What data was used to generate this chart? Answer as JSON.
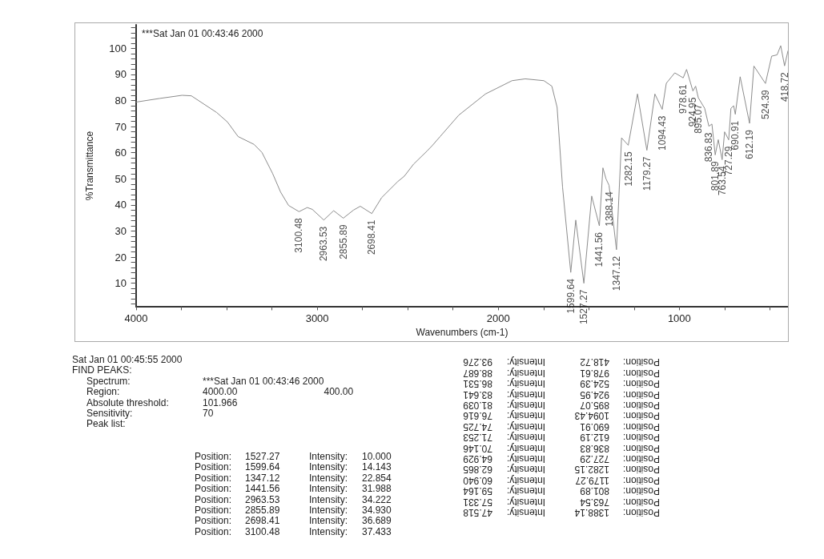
{
  "chart_data": {
    "type": "line",
    "title": "***Sat Jan 01 00:43:46 2000",
    "xlabel": "Wavenumbers (cm-1)",
    "ylabel": "%Transmittance",
    "xlim": [
      4000,
      400
    ],
    "ylim": [
      1,
      109
    ],
    "xticks": [
      4000,
      {
        "value": 3750,
        "label": null
      },
      {
        "value": 3500,
        "label": null
      },
      {
        "value": 3250,
        "label": null
      },
      3000,
      {
        "value": 2750,
        "label": null
      },
      {
        "value": 2500,
        "label": null
      },
      {
        "value": 2250,
        "label": null
      },
      2000,
      {
        "value": 1750,
        "label": null
      },
      {
        "value": 1500,
        "label": null
      },
      {
        "value": 1250,
        "label": null
      },
      1000,
      {
        "value": 750,
        "label": null
      },
      {
        "value": 500,
        "label": null
      }
    ],
    "yticks": [
      {
        "value": 2,
        "label": null
      },
      {
        "value": 4,
        "label": null
      },
      {
        "value": 6,
        "label": null
      },
      {
        "value": 8,
        "label": null
      },
      10,
      {
        "value": 12,
        "label": null
      },
      {
        "value": 14,
        "label": null
      },
      {
        "value": 16,
        "label": null
      },
      {
        "value": 18,
        "label": null
      },
      20,
      {
        "value": 22,
        "label": null
      },
      {
        "value": 24,
        "label": null
      },
      {
        "value": 26,
        "label": null
      },
      {
        "value": 28,
        "label": null
      },
      30,
      {
        "value": 32,
        "label": null
      },
      {
        "value": 34,
        "label": null
      },
      {
        "value": 36,
        "label": null
      },
      {
        "value": 38,
        "label": null
      },
      40,
      {
        "value": 42,
        "label": null
      },
      {
        "value": 44,
        "label": null
      },
      {
        "value": 46,
        "label": null
      },
      {
        "value": 48,
        "label": null
      },
      50,
      {
        "value": 52,
        "label": null
      },
      {
        "value": 54,
        "label": null
      },
      {
        "value": 56,
        "label": null
      },
      {
        "value": 58,
        "label": null
      },
      60,
      {
        "value": 62,
        "label": null
      },
      {
        "value": 64,
        "label": null
      },
      {
        "value": 66,
        "label": null
      },
      {
        "value": 68,
        "label": null
      },
      70,
      {
        "value": 72,
        "label": null
      },
      {
        "value": 74,
        "label": null
      },
      {
        "value": 76,
        "label": null
      },
      {
        "value": 78,
        "label": null
      },
      80,
      {
        "value": 82,
        "label": null
      },
      {
        "value": 84,
        "label": null
      },
      {
        "value": 86,
        "label": null
      },
      {
        "value": 88,
        "label": null
      },
      90,
      {
        "value": 92,
        "label": null
      },
      {
        "value": 94,
        "label": null
      },
      {
        "value": 96,
        "label": null
      },
      {
        "value": 98,
        "label": null
      },
      100,
      {
        "value": 102,
        "label": null
      },
      {
        "value": 104,
        "label": null
      },
      {
        "value": 106,
        "label": null
      },
      {
        "value": 108,
        "label": null
      }
    ],
    "grid": false,
    "marker": "none",
    "line_style": "solid",
    "series": [
      {
        "color": "#8c8c8c",
        "x": [
          4000,
          3870,
          3746,
          3695,
          3555,
          3496,
          3437,
          3349,
          3305,
          3246,
          3202,
          3158,
          3100.48,
          3055,
          3027,
          2963.53,
          2909,
          2855.89,
          2800,
          2762,
          2698.41,
          2644,
          2556,
          2519,
          2468,
          2394,
          2365,
          2321,
          2218,
          2071,
          1924,
          1851,
          1748,
          1704,
          1675,
          1645,
          1599.64,
          1572,
          1527.27,
          1484,
          1441.56,
          1422,
          1405,
          1388.14,
          1347.12,
          1319,
          1282.15,
          1231,
          1179.27,
          1135,
          1094.43,
          1072,
          1025,
          978.61,
          960,
          924.95,
          910,
          895.07,
          860,
          836.83,
          820,
          801.89,
          785,
          763.54,
          750,
          727.29,
          715,
          700,
          690.91,
          664,
          612.19,
          588,
          524.39,
          490,
          460,
          440,
          418.72,
          400
        ],
        "values": [
          79.4,
          80.8,
          82.0,
          81.8,
          75.4,
          71.8,
          66.2,
          63.2,
          60.1,
          52.0,
          44.9,
          39.8,
          37.433,
          39.0,
          38.3,
          34.222,
          37.8,
          34.93,
          38.0,
          39.5,
          36.689,
          42.8,
          48.9,
          51.0,
          55.6,
          60.6,
          62.7,
          66.2,
          74.4,
          82.5,
          87.6,
          88.3,
          87.6,
          85.5,
          77.4,
          46.9,
          14.143,
          34.2,
          10.0,
          43.4,
          31.988,
          54.2,
          50,
          47.518,
          22.854,
          65.7,
          62.865,
          82.5,
          60.94,
          82.5,
          76.616,
          86.6,
          90.6,
          88.687,
          91.9,
          83.641,
          85.5,
          81.039,
          77,
          70.146,
          71,
          59.164,
          65,
          57.331,
          68,
          64.929,
          77,
          78,
          74.725,
          89.1,
          71.253,
          93.2,
          86.531,
          97,
          97.5,
          101,
          93.276,
          99
        ]
      }
    ],
    "annotations": [
      {
        "text": "3100.48",
        "x": 3100.48,
        "y": 37.433
      },
      {
        "text": "2963.53",
        "x": 2963.53,
        "y": 34.222
      },
      {
        "text": "2855.89",
        "x": 2855.89,
        "y": 34.93
      },
      {
        "text": "2698.41",
        "x": 2698.41,
        "y": 36.689
      },
      {
        "text": "1599.64",
        "x": 1599.64,
        "y": 14.143
      },
      {
        "text": "1527.27",
        "x": 1527.27,
        "y": 10.0
      },
      {
        "text": "1441.56",
        "x": 1441.56,
        "y": 31.988
      },
      {
        "text": "1388.14",
        "x": 1388.14,
        "y": 47.518
      },
      {
        "text": "1347.12",
        "x": 1347.12,
        "y": 22.854
      },
      {
        "text": "1282.15",
        "x": 1282.15,
        "y": 62.865
      },
      {
        "text": "1179.27",
        "x": 1179.27,
        "y": 60.94
      },
      {
        "text": "1094.43",
        "x": 1094.43,
        "y": 76.616
      },
      {
        "text": "978.61",
        "x": 978.61,
        "y": 88.687
      },
      {
        "text": "924.95",
        "x": 924.95,
        "y": 83.641
      },
      {
        "text": "895.07",
        "x": 895.07,
        "y": 81.039
      },
      {
        "text": "836.83",
        "x": 836.83,
        "y": 70.146
      },
      {
        "text": "801.89",
        "x": 801.89,
        "y": 59.164
      },
      {
        "text": "763.54",
        "x": 763.54,
        "y": 57.331
      },
      {
        "text": "727.29",
        "x": 727.29,
        "y": 64.929
      },
      {
        "text": "690.91",
        "x": 690.91,
        "y": 74.725
      },
      {
        "text": "612.19",
        "x": 612.19,
        "y": 71.253
      },
      {
        "text": "524.39",
        "x": 524.39,
        "y": 86.531
      },
      {
        "text": "418.72",
        "x": 418.72,
        "y": 93.276
      },
      "Sat Jan 01 00:45:55 2000",
      "FIND PEAKS:",
      "Spectrum:  ***Sat Jan 01 00:43:46 2000",
      "Region:  4000.00  400.00",
      "Absolute threshold:  101.966",
      "Sensitivity:  70",
      "Peak list:",
      "Position:  1527.27  Intensity:  10.000",
      "Position:  1599.64  Intensity:  14.143",
      "Position:  1347.12  Intensity:  22.854",
      "Position:  1441.56  Intensity:  31.988",
      "Position:  2963.53  Intensity:  34.222",
      "Position:  2855.89  Intensity:  34.930",
      "Position:  2698.41  Intensity:  36.689",
      "Position:  3100.48  Intensity:  37.433",
      "Position:  1388.14  Intensity:  47.518",
      "Position:  763.54  Intensity:  57.331",
      "Position:  801.89  Intensity:  59.164",
      "Position:  1179.27  Intensity:  60.940",
      "Position:  1282.15  Intensity:  62.865",
      "Position:  727.29  Intensity:  64.929",
      "Position:  836.83  Intensity:  70.146",
      "Position:  612.19  Intensity:  71.253",
      "Position:  690.91  Intensity:  74.725",
      "Position:  1094.43  Intensity:  76.616",
      "Position:  895.07  Intensity:  81.039",
      "Position:  924.95  Intensity:  83.641",
      "Position:  524.39  Intensity:  86.531",
      "Position:  978.61  Intensity:  88.687",
      "Position:  418.72  Intensity:  93.276"
    ]
  }
}
